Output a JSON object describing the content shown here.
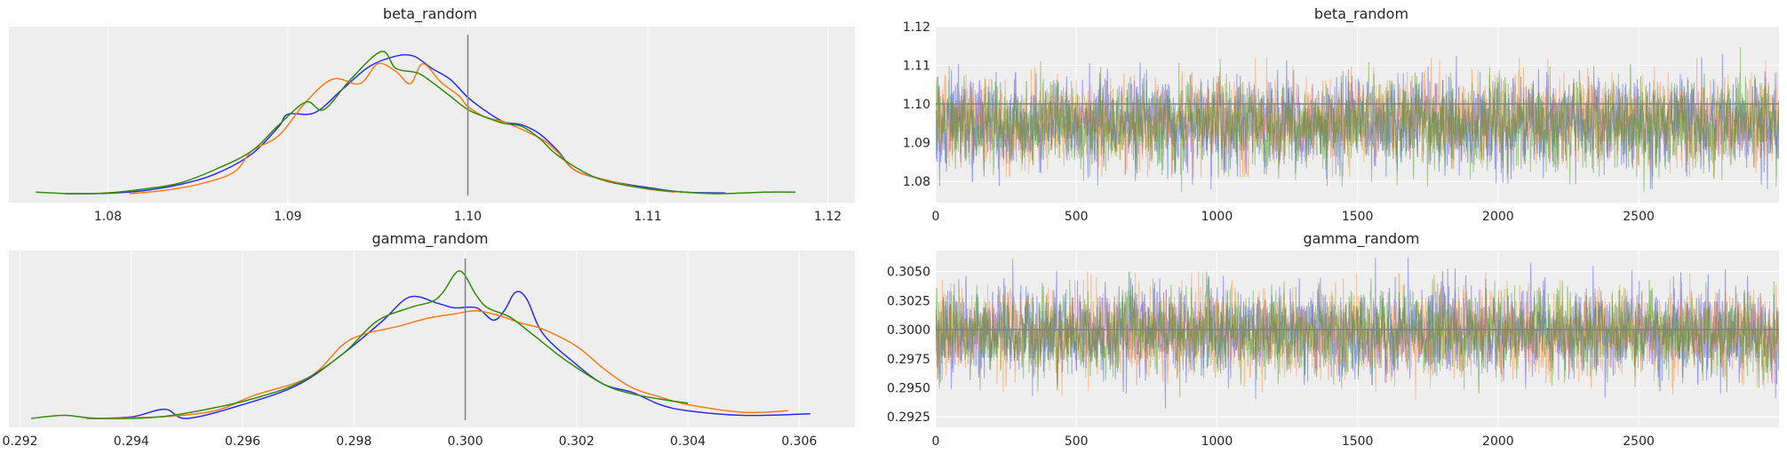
{
  "figure": {
    "background": "#ffffff",
    "panel_background": "#eeeeee",
    "grid_color": "#ffffff",
    "ref_line_color": "#808080"
  },
  "chart_data": [
    {
      "type": "line",
      "panel": "density",
      "title": "beta_random",
      "xlabel": "",
      "ylabel": "",
      "xlim": [
        1.0745,
        1.1215
      ],
      "xticks": [
        "1.08",
        "1.09",
        "1.10",
        "1.11",
        "1.12"
      ],
      "xtick_values": [
        1.08,
        1.09,
        1.1,
        1.11,
        1.12
      ],
      "yticks": [],
      "grid": true,
      "reference_line": 1.1,
      "series": [
        {
          "color": "#2a2eec",
          "x": [
            1.0776,
            1.08,
            1.082,
            1.084,
            1.086,
            1.088,
            1.0895,
            1.09,
            1.0915,
            1.093,
            1.0945,
            1.096,
            1.097,
            1.098,
            1.099,
            1.1,
            1.101,
            1.102,
            1.103,
            1.104,
            1.105,
            1.106,
            1.108,
            1.11,
            1.112,
            1.1143
          ],
          "y": [
            0.0,
            0.003,
            0.02,
            0.06,
            0.13,
            0.26,
            0.44,
            0.52,
            0.53,
            0.68,
            0.83,
            0.9,
            0.9,
            0.82,
            0.75,
            0.63,
            0.54,
            0.47,
            0.45,
            0.39,
            0.28,
            0.15,
            0.08,
            0.04,
            0.01,
            0.005
          ]
        },
        {
          "color": "#fa7c17",
          "x": [
            1.0812,
            1.083,
            1.085,
            1.087,
            1.088,
            1.0895,
            1.091,
            1.0925,
            1.094,
            1.095,
            1.096,
            1.0968,
            1.0975,
            1.0985,
            1.0995,
            1.1,
            1.101,
            1.102,
            1.103,
            1.1042,
            1.105,
            1.106,
            1.108,
            1.11,
            1.1115
          ],
          "y": [
            0.0,
            0.02,
            0.06,
            0.14,
            0.28,
            0.38,
            0.6,
            0.75,
            0.72,
            0.85,
            0.8,
            0.72,
            0.85,
            0.73,
            0.64,
            0.57,
            0.5,
            0.47,
            0.42,
            0.35,
            0.27,
            0.15,
            0.08,
            0.03,
            0.01
          ]
        },
        {
          "color": "#328c06",
          "x": [
            1.076,
            1.078,
            1.08,
            1.082,
            1.084,
            1.086,
            1.088,
            1.0895,
            1.091,
            1.092,
            1.0935,
            1.0952,
            1.096,
            1.0972,
            1.098,
            1.099,
            1.1,
            1.101,
            1.102,
            1.103,
            1.104,
            1.105,
            1.107,
            1.109,
            1.111,
            1.1137,
            1.1165,
            1.1182
          ],
          "y": [
            0.01,
            0.0,
            0.005,
            0.03,
            0.07,
            0.16,
            0.28,
            0.45,
            0.6,
            0.55,
            0.75,
            0.93,
            0.82,
            0.79,
            0.73,
            0.64,
            0.55,
            0.5,
            0.46,
            0.44,
            0.36,
            0.25,
            0.11,
            0.05,
            0.02,
            0.0,
            0.01,
            0.01
          ]
        }
      ]
    },
    {
      "type": "line",
      "panel": "trace",
      "title": "beta_random",
      "xlabel": "",
      "ylabel": "",
      "xlim": [
        0,
        2999
      ],
      "ylim": [
        1.0745,
        1.12
      ],
      "xticks": [
        "0",
        "500",
        "1000",
        "1500",
        "2000",
        "2500"
      ],
      "xtick_values": [
        0,
        500,
        1000,
        1500,
        2000,
        2500
      ],
      "yticks": [
        "1.08",
        "1.09",
        "1.10",
        "1.11",
        "1.12"
      ],
      "ytick_values": [
        1.08,
        1.09,
        1.1,
        1.11,
        1.12
      ],
      "grid": true,
      "reference_line": 1.1,
      "draws_per_chain": 3000,
      "series": [
        {
          "color": "#2a2eec",
          "mean": 1.095,
          "sd": 0.0055,
          "min": 1.078,
          "max": 1.114
        },
        {
          "color": "#fa7c17",
          "mean": 1.0955,
          "sd": 0.0055,
          "min": 1.081,
          "max": 1.112
        },
        {
          "color": "#328c06",
          "mean": 1.095,
          "sd": 0.0055,
          "min": 1.076,
          "max": 1.118
        }
      ]
    },
    {
      "type": "line",
      "panel": "density",
      "title": "gamma_random",
      "xlabel": "",
      "ylabel": "",
      "xlim": [
        0.2918,
        0.307
      ],
      "xticks": [
        "0.292",
        "0.294",
        "0.296",
        "0.298",
        "0.300",
        "0.302",
        "0.304",
        "0.306"
      ],
      "xtick_values": [
        0.292,
        0.294,
        0.296,
        0.298,
        0.3,
        0.302,
        0.304,
        0.306
      ],
      "yticks": [],
      "grid": true,
      "reference_line": 0.3,
      "series": [
        {
          "color": "#2a2eec",
          "x": [
            0.2932,
            0.294,
            0.2946,
            0.295,
            0.296,
            0.297,
            0.2978,
            0.2985,
            0.299,
            0.2995,
            0.2998,
            0.3002,
            0.3005,
            0.3007,
            0.3009,
            0.3011,
            0.3014,
            0.302,
            0.3025,
            0.303,
            0.3035,
            0.304,
            0.305,
            0.3062
          ],
          "y": [
            0.0,
            0.01,
            0.06,
            0.0,
            0.09,
            0.22,
            0.42,
            0.63,
            0.79,
            0.75,
            0.72,
            0.72,
            0.64,
            0.7,
            0.82,
            0.78,
            0.55,
            0.35,
            0.22,
            0.17,
            0.09,
            0.05,
            0.02,
            0.03
          ]
        },
        {
          "color": "#fa7c17",
          "x": [
            0.2932,
            0.2945,
            0.2955,
            0.2962,
            0.2972,
            0.2978,
            0.2982,
            0.2988,
            0.2993,
            0.2998,
            0.3002,
            0.3006,
            0.301,
            0.3014,
            0.302,
            0.3025,
            0.303,
            0.3035,
            0.304,
            0.305,
            0.3058
          ],
          "y": [
            0.0,
            0.01,
            0.05,
            0.15,
            0.27,
            0.48,
            0.55,
            0.6,
            0.65,
            0.68,
            0.7,
            0.67,
            0.62,
            0.58,
            0.47,
            0.32,
            0.2,
            0.14,
            0.09,
            0.04,
            0.05
          ]
        },
        {
          "color": "#328c06",
          "x": [
            0.2922,
            0.2928,
            0.2934,
            0.2945,
            0.2955,
            0.2962,
            0.297,
            0.2978,
            0.2984,
            0.299,
            0.2994,
            0.2996,
            0.2999,
            0.3002,
            0.3004,
            0.3008,
            0.3012,
            0.3018,
            0.3025,
            0.303,
            0.3036,
            0.304
          ],
          "y": [
            0.0,
            0.02,
            0.0,
            0.01,
            0.07,
            0.13,
            0.23,
            0.42,
            0.63,
            0.72,
            0.76,
            0.82,
            0.96,
            0.8,
            0.72,
            0.66,
            0.55,
            0.38,
            0.22,
            0.16,
            0.12,
            0.1
          ]
        }
      ]
    },
    {
      "type": "line",
      "panel": "trace",
      "title": "gamma_random",
      "xlabel": "",
      "ylabel": "",
      "xlim": [
        0,
        2999
      ],
      "ylim": [
        0.2916,
        0.3068
      ],
      "xticks": [
        "0",
        "500",
        "1000",
        "1500",
        "2000",
        "2500"
      ],
      "xtick_values": [
        0,
        500,
        1000,
        1500,
        2000,
        2500
      ],
      "yticks": [
        "0.2925",
        "0.2950",
        "0.2975",
        "0.3000",
        "0.3025",
        "0.3050"
      ],
      "ytick_values": [
        0.2925,
        0.295,
        0.2975,
        0.3,
        0.3025,
        0.305
      ],
      "grid": true,
      "reference_line": 0.3,
      "draws_per_chain": 3000,
      "series": [
        {
          "color": "#2a2eec",
          "mean": 0.2998,
          "sd": 0.0018,
          "min": 0.2932,
          "max": 0.3062
        },
        {
          "color": "#fa7c17",
          "mean": 0.2998,
          "sd": 0.0018,
          "min": 0.294,
          "max": 0.3058
        },
        {
          "color": "#328c06",
          "mean": 0.2998,
          "sd": 0.0018,
          "min": 0.2922,
          "max": 0.3052
        }
      ]
    }
  ]
}
